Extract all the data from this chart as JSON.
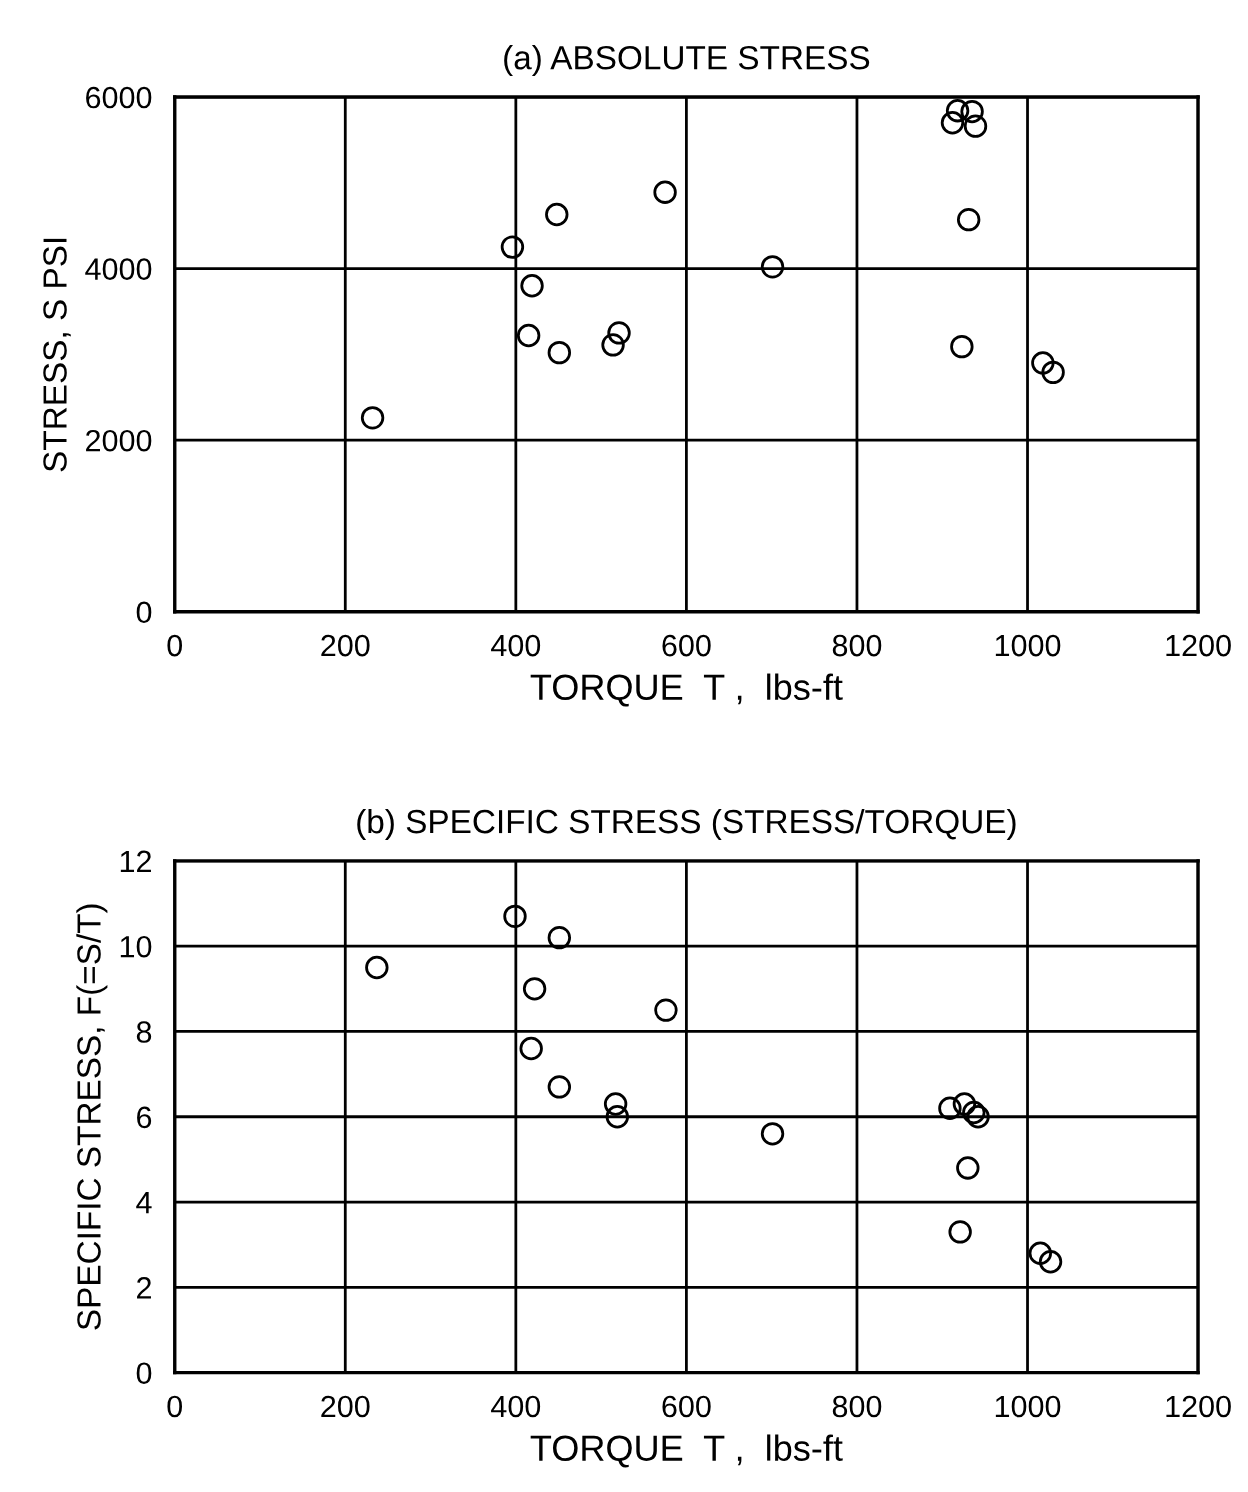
{
  "chart_data": [
    {
      "type": "scatter",
      "title": "(a) ABSOLUTE STRESS",
      "xlabel": "TORQUE  T ,  lbs-ft",
      "ylabel": "STRESS, S PSI",
      "series": [
        {
          "color": "#000000",
          "x": [
            232,
            396,
            448,
            575,
            419,
            415,
            451,
            521,
            514,
            701,
            912,
            918,
            935,
            939,
            931,
            923,
            1018,
            1030
          ],
          "values": [
            2260,
            4250,
            4630,
            4890,
            3800,
            3220,
            3020,
            3250,
            3110,
            4020,
            5700,
            5840,
            5830,
            5660,
            4570,
            3090,
            2900,
            2790
          ]
        }
      ],
      "marker": "circle",
      "xlim": [
        0,
        1200
      ],
      "xticks": [
        0,
        200,
        400,
        600,
        800,
        1000,
        1200
      ],
      "ylim": [
        0,
        6000
      ],
      "yticks": [
        0,
        2000,
        4000,
        6000
      ],
      "grid": true
    },
    {
      "type": "scatter",
      "title": "(b) SPECIFIC STRESS (STRESS/TORQUE)",
      "xlabel": "TORQUE  T ,  lbs-ft",
      "ylabel": "SPECIFIC STRESS, F(=S/T)",
      "series": [
        {
          "color": "#000000",
          "x": [
            237,
            399,
            451,
            422,
            576,
            418,
            451,
            517,
            519,
            701,
            909,
            926,
            937,
            942,
            930,
            921,
            1015,
            1027
          ],
          "values": [
            9.5,
            10.7,
            10.2,
            9.0,
            8.5,
            7.6,
            6.7,
            6.3,
            6.0,
            5.6,
            6.2,
            6.3,
            6.1,
            6.0,
            4.8,
            3.3,
            2.8,
            2.6
          ]
        }
      ],
      "marker": "circle",
      "xlim": [
        0,
        1200
      ],
      "xticks": [
        0,
        200,
        400,
        600,
        800,
        1000,
        1200
      ],
      "ylim": [
        0,
        12
      ],
      "yticks": [
        0,
        2,
        4,
        6,
        8,
        10,
        12
      ],
      "grid": true
    }
  ]
}
